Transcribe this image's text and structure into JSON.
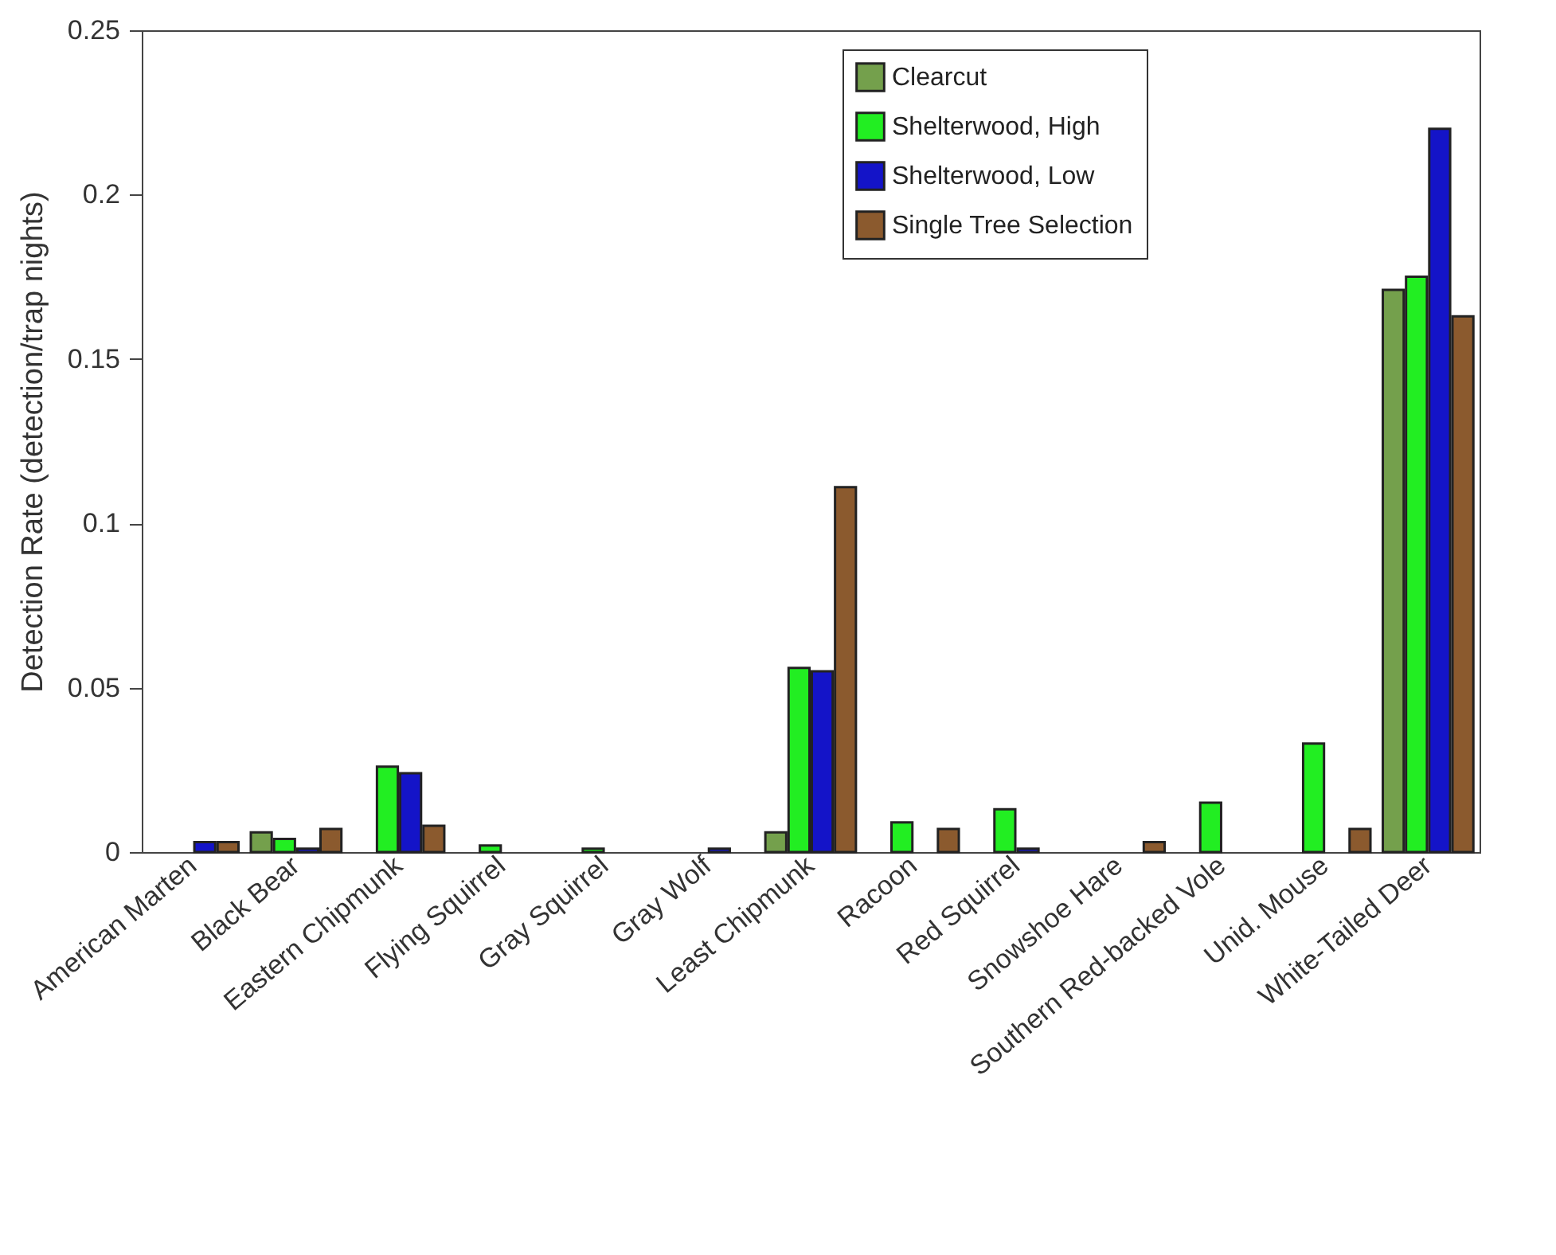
{
  "chart_data": {
    "type": "bar",
    "ylabel": "Detection Rate (detection/trap nights)",
    "categories": [
      "American Marten",
      "Black Bear",
      "Eastern Chipmunk",
      "Flying Squirrel",
      "Gray Squirrel",
      "Gray Wolf",
      "Least Chipmunk",
      "Racoon",
      "Red Squirrel",
      "Snowshoe Hare",
      "Southern Red-backed Vole",
      "Unid. Mouse",
      "White-Tailed Deer"
    ],
    "series": [
      {
        "name": "Clearcut",
        "color": "#74a04c",
        "values": [
          null,
          0.006,
          null,
          null,
          null,
          null,
          0.006,
          null,
          null,
          null,
          null,
          null,
          0.171
        ]
      },
      {
        "name": "Shelterwood, High",
        "color": "#22ee22",
        "values": [
          null,
          0.004,
          0.026,
          0.002,
          0.001,
          null,
          0.056,
          0.009,
          0.013,
          null,
          0.015,
          0.033,
          0.175
        ]
      },
      {
        "name": "Shelterwood, Low",
        "color": "#1414c8",
        "values": [
          0.003,
          0.001,
          0.024,
          null,
          null,
          0.001,
          0.055,
          null,
          0.001,
          null,
          null,
          null,
          0.22
        ]
      },
      {
        "name": "Single Tree Selection",
        "color": "#8b5a2e",
        "values": [
          0.003,
          0.007,
          0.008,
          null,
          null,
          null,
          0.111,
          0.007,
          null,
          0.003,
          null,
          0.007,
          0.163
        ]
      }
    ],
    "ylim": [
      0,
      0.25
    ],
    "yticks": [
      0,
      0.05,
      0.1,
      0.15,
      0.2,
      0.25
    ],
    "legend": "top right"
  }
}
